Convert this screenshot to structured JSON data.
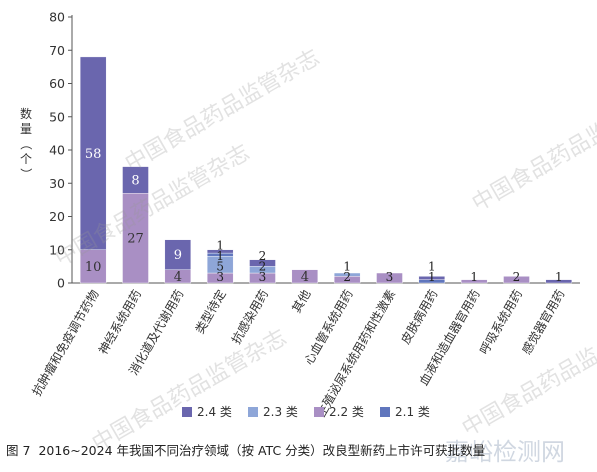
{
  "chart_data": {
    "type": "bar",
    "stacked": true,
    "ylabel": "数量（个）",
    "ylim": [
      0,
      80
    ],
    "yticks": [
      0,
      10,
      20,
      30,
      40,
      50,
      60,
      70,
      80
    ],
    "categories": [
      "抗肿瘤和免疫调节药物",
      "神经系统用药",
      "消化道及代谢用药",
      "类型待定",
      "抗感染用药",
      "其他",
      "心血管系统用药",
      "生殖泌尿系统用药和性激素",
      "皮肤病用药",
      "血液和造血器官用药",
      "呼吸系统用药",
      "感觉器官用药"
    ],
    "series": [
      {
        "name": "2.2 类",
        "color": "#a98fc4",
        "values": [
          10,
          27,
          4,
          3,
          3,
          4,
          2,
          3,
          0,
          1,
          2,
          0
        ]
      },
      {
        "name": "2.3 类",
        "color": "#8ea6d8",
        "values": [
          0,
          0,
          0,
          5,
          2,
          0,
          1,
          0,
          0,
          0,
          0,
          0
        ]
      },
      {
        "name": "2.1 类",
        "color": "#6076bd",
        "values": [
          0,
          0,
          0,
          1,
          0,
          0,
          0,
          0,
          1,
          0,
          0,
          0
        ]
      },
      {
        "name": "2.4 类",
        "color": "#6a66ae",
        "values": [
          58,
          8,
          9,
          1,
          2,
          0,
          0,
          0,
          1,
          0,
          0,
          1
        ]
      }
    ],
    "segment_labels": [
      [
        "10",
        "58"
      ],
      [
        "27",
        "8"
      ],
      [
        "4",
        "9"
      ],
      [
        "3",
        "5",
        "1",
        "1"
      ],
      [
        "3",
        "2",
        "2"
      ],
      [
        "4"
      ],
      [
        "2",
        "1"
      ],
      [
        "3"
      ],
      [
        "1",
        "1"
      ],
      [
        "1"
      ],
      [
        "2"
      ],
      [
        "1"
      ]
    ],
    "legend": {
      "placement": "bottom",
      "order": [
        "2.4 类",
        "2.3 类",
        "2.2 类",
        "2.1 类"
      ]
    }
  },
  "caption": {
    "figure": "图 7",
    "text": "2016~2024 年我国不同治疗领域（按 ATC 分类）改良型新药上市许可获批数量"
  },
  "watermarks": [
    "中国食品药品监管杂志",
    "中国食品药品监管杂志",
    "中国食品药品监管杂志",
    "中国食品药品监管杂志",
    "中国食品药品监",
    "嘉峪检测网"
  ]
}
